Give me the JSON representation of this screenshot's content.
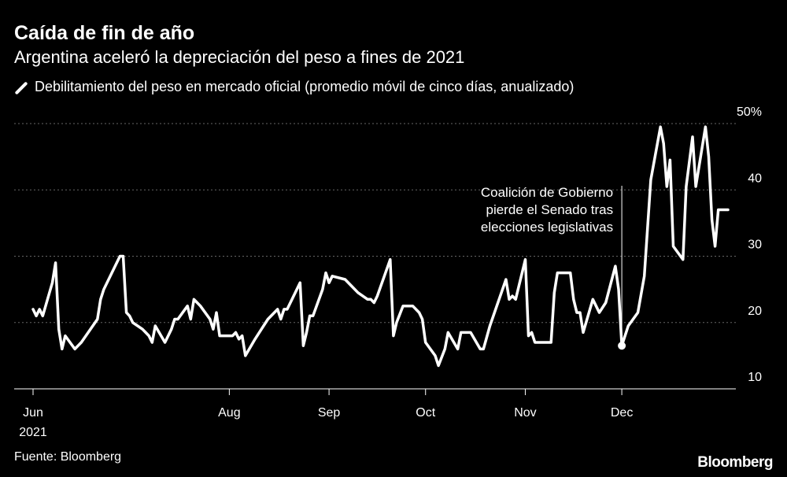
{
  "header": {
    "title": "Caída de fin de año",
    "subtitle": "Argentina aceleró la depreciación del peso a fines de 2021"
  },
  "footer": {
    "source": "Fuente: Bloomberg",
    "logo": "Bloomberg"
  },
  "colors": {
    "background": "#000000",
    "line": "#ffffff",
    "grid": "#666666"
  },
  "chart_data": {
    "type": "line",
    "title": "Caída de fin de año",
    "subtitle": "Argentina aceleró la depreciación del peso a fines de 2021",
    "legend": {
      "label": "Debilitamiento del peso en mercado oficial (promedio móvil de cinco días, anualizado)",
      "placement": "top-left"
    },
    "ylim": [
      10,
      50
    ],
    "y_ticks": [
      10,
      20,
      30,
      40,
      50
    ],
    "y_tick_labels": [
      "10",
      "20",
      "30",
      "40",
      "50%"
    ],
    "y_axis_side": "right",
    "grid": true,
    "x_ticks": [
      {
        "date": "2021-06-01",
        "label": "Jun",
        "label2": "2021"
      },
      {
        "date": "2021-08-01",
        "label": "Aug",
        "label2": ""
      },
      {
        "date": "2021-09-01",
        "label": "Sep",
        "label2": ""
      },
      {
        "date": "2021-10-01",
        "label": "Oct",
        "label2": ""
      },
      {
        "date": "2021-11-01",
        "label": "Nov",
        "label2": ""
      },
      {
        "date": "2021-12-01",
        "label": "Dec",
        "label2": ""
      }
    ],
    "series": [
      {
        "name": "Debilitamiento del peso en mercado oficial (promedio móvil de cinco días, anualizado)",
        "color": "#ffffff",
        "points": [
          [
            "2021-06-01",
            22
          ],
          [
            "2021-06-02",
            21
          ],
          [
            "2021-06-03",
            22
          ],
          [
            "2021-06-04",
            21
          ],
          [
            "2021-06-07",
            26
          ],
          [
            "2021-06-08",
            29
          ],
          [
            "2021-06-09",
            19
          ],
          [
            "2021-06-10",
            16
          ],
          [
            "2021-06-11",
            18
          ],
          [
            "2021-06-14",
            16
          ],
          [
            "2021-06-15",
            16.5
          ],
          [
            "2021-06-16",
            17
          ],
          [
            "2021-06-21",
            20.5
          ],
          [
            "2021-06-22",
            23.5
          ],
          [
            "2021-06-23",
            25
          ],
          [
            "2021-06-28",
            30
          ],
          [
            "2021-06-29",
            30
          ],
          [
            "2021-06-30",
            21.5
          ],
          [
            "2021-07-01",
            21
          ],
          [
            "2021-07-02",
            20
          ],
          [
            "2021-07-05",
            19
          ],
          [
            "2021-07-06",
            18.5
          ],
          [
            "2021-07-07",
            18
          ],
          [
            "2021-07-08",
            17
          ],
          [
            "2021-07-09",
            19.5
          ],
          [
            "2021-07-12",
            17
          ],
          [
            "2021-07-13",
            18
          ],
          [
            "2021-07-14",
            19
          ],
          [
            "2021-07-15",
            20.5
          ],
          [
            "2021-07-16",
            20.5
          ],
          [
            "2021-07-19",
            22.5
          ],
          [
            "2021-07-20",
            20.5
          ],
          [
            "2021-07-21",
            23.5
          ],
          [
            "2021-07-22",
            23
          ],
          [
            "2021-07-23",
            22.5
          ],
          [
            "2021-07-26",
            20.5
          ],
          [
            "2021-07-27",
            19
          ],
          [
            "2021-07-28",
            21.5
          ],
          [
            "2021-07-29",
            18
          ],
          [
            "2021-08-02",
            18
          ],
          [
            "2021-08-03",
            18.5
          ],
          [
            "2021-08-04",
            17.5
          ],
          [
            "2021-08-05",
            18
          ],
          [
            "2021-08-06",
            15
          ],
          [
            "2021-08-09",
            17.5
          ],
          [
            "2021-08-11",
            19
          ],
          [
            "2021-08-13",
            20.5
          ],
          [
            "2021-08-16",
            22
          ],
          [
            "2021-08-17",
            20.5
          ],
          [
            "2021-08-18",
            22
          ],
          [
            "2021-08-19",
            22
          ],
          [
            "2021-08-23",
            26
          ],
          [
            "2021-08-24",
            16.5
          ],
          [
            "2021-08-25",
            18.5
          ],
          [
            "2021-08-26",
            21
          ],
          [
            "2021-08-27",
            21
          ],
          [
            "2021-08-30",
            25
          ],
          [
            "2021-08-31",
            27.5
          ],
          [
            "2021-09-01",
            26
          ],
          [
            "2021-09-02",
            27
          ],
          [
            "2021-09-06",
            26.5
          ],
          [
            "2021-09-08",
            25.5
          ],
          [
            "2021-09-10",
            24.5
          ],
          [
            "2021-09-13",
            23.5
          ],
          [
            "2021-09-14",
            23.5
          ],
          [
            "2021-09-15",
            23
          ],
          [
            "2021-09-16",
            24
          ],
          [
            "2021-09-20",
            29.5
          ],
          [
            "2021-09-21",
            18
          ],
          [
            "2021-09-22",
            20
          ],
          [
            "2021-09-24",
            22.5
          ],
          [
            "2021-09-27",
            22.5
          ],
          [
            "2021-09-29",
            21.5
          ],
          [
            "2021-09-30",
            20.5
          ],
          [
            "2021-10-01",
            17
          ],
          [
            "2021-10-04",
            15
          ],
          [
            "2021-10-05",
            13.5
          ],
          [
            "2021-10-07",
            16
          ],
          [
            "2021-10-08",
            18.5
          ],
          [
            "2021-10-11",
            16
          ],
          [
            "2021-10-12",
            18.5
          ],
          [
            "2021-10-14",
            18.5
          ],
          [
            "2021-10-15",
            18.5
          ],
          [
            "2021-10-18",
            16
          ],
          [
            "2021-10-19",
            16
          ],
          [
            "2021-10-21",
            19.5
          ],
          [
            "2021-10-26",
            26.5
          ],
          [
            "2021-10-27",
            23.5
          ],
          [
            "2021-10-28",
            24
          ],
          [
            "2021-10-29",
            23.5
          ],
          [
            "2021-11-01",
            29.5
          ],
          [
            "2021-11-02",
            18
          ],
          [
            "2021-11-03",
            18.5
          ],
          [
            "2021-11-04",
            17
          ],
          [
            "2021-11-09",
            17
          ],
          [
            "2021-11-10",
            24.5
          ],
          [
            "2021-11-11",
            27.5
          ],
          [
            "2021-11-15",
            27.5
          ],
          [
            "2021-11-16",
            23.5
          ],
          [
            "2021-11-17",
            21.5
          ],
          [
            "2021-11-18",
            21.5
          ],
          [
            "2021-11-19",
            18.5
          ],
          [
            "2021-11-22",
            23.5
          ],
          [
            "2021-11-24",
            21.5
          ],
          [
            "2021-11-26",
            23
          ],
          [
            "2021-11-29",
            28.5
          ],
          [
            "2021-11-30",
            25
          ],
          [
            "2021-12-01",
            16.5
          ],
          [
            "2021-12-03",
            19.5
          ],
          [
            "2021-12-06",
            21.5
          ],
          [
            "2021-12-08",
            27
          ],
          [
            "2021-12-10",
            41.5
          ],
          [
            "2021-12-13",
            49.5
          ],
          [
            "2021-12-14",
            47
          ],
          [
            "2021-12-15",
            40.5
          ],
          [
            "2021-12-16",
            44.5
          ],
          [
            "2021-12-17",
            31.5
          ],
          [
            "2021-12-20",
            29.5
          ],
          [
            "2021-12-21",
            40.5
          ],
          [
            "2021-12-23",
            48
          ],
          [
            "2021-12-24",
            40.5
          ],
          [
            "2021-12-27",
            49.5
          ],
          [
            "2021-12-28",
            45
          ],
          [
            "2021-12-29",
            35.5
          ],
          [
            "2021-12-30",
            31.5
          ],
          [
            "2021-12-31",
            37
          ],
          [
            "2022-01-03",
            37
          ]
        ]
      }
    ],
    "annotation": {
      "lines": [
        "Coalición de Gobierno",
        "pierde el Senado tras",
        "elecciones legislativas"
      ],
      "date": "2021-12-01",
      "value": 16.5
    }
  }
}
